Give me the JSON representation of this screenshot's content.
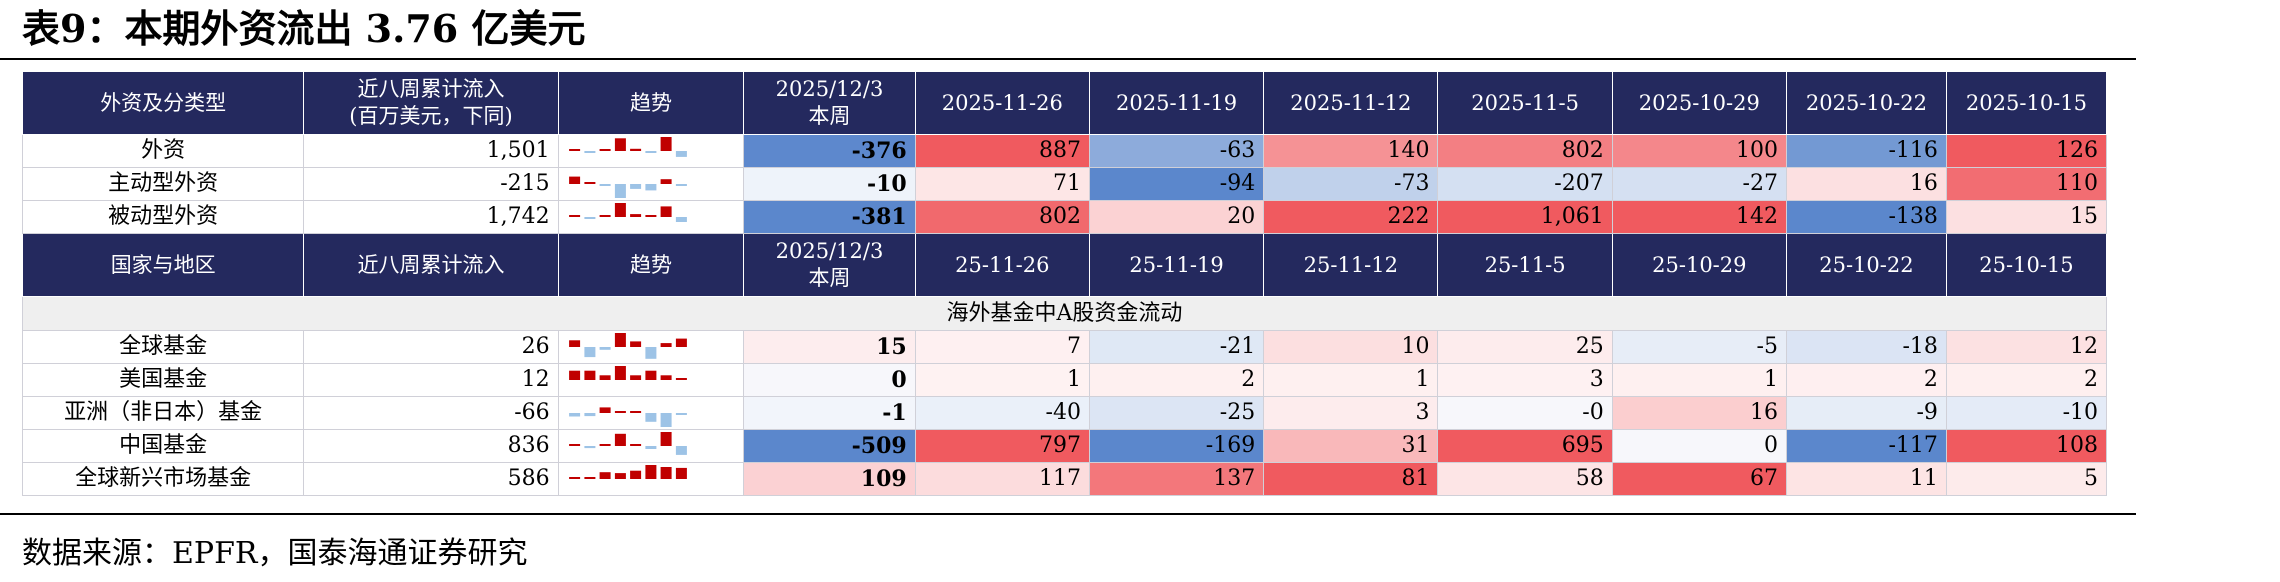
{
  "title": "表9：本期外资流出 3.76 亿美元",
  "source": "数据来源：EPFR，国泰海通证券研究",
  "colors": {
    "header_bg": "#24295e",
    "positive": "#f05a5f",
    "negative": "#5b87cc"
  },
  "section1": {
    "headers": [
      "外资及分类型",
      "近八周累计流入\n(百万美元，下同)",
      "趋势",
      "2025/12/3\n本周",
      "2025-11-26",
      "2025-11-19",
      "2025-11-12",
      "2025-11-5",
      "2025-10-29",
      "2025-10-22",
      "2025-10-15"
    ],
    "rows": [
      {
        "name": "外资",
        "total": "1,501",
        "values": [
          "-376",
          "887",
          "-63",
          "140",
          "802",
          "100",
          "-116",
          "126"
        ]
      },
      {
        "name": "主动型外资",
        "total": "-215",
        "values": [
          "-10",
          "71",
          "-94",
          "-73",
          "-207",
          "-27",
          "16",
          "110"
        ]
      },
      {
        "name": "被动型外资",
        "total": "1,742",
        "values": [
          "-381",
          "802",
          "20",
          "222",
          "1,061",
          "142",
          "-138",
          "15"
        ]
      }
    ]
  },
  "section2": {
    "headers": [
      "国家与地区",
      "近八周累计流入",
      "趋势",
      "2025/12/3\n本周",
      "25-11-26",
      "25-11-19",
      "25-11-12",
      "25-11-5",
      "25-10-29",
      "25-10-22",
      "25-10-15"
    ],
    "group_label": "海外基金中A股资金流动",
    "rows": [
      {
        "name": "全球基金",
        "total": "26",
        "values": [
          "15",
          "7",
          "-21",
          "10",
          "25",
          "-5",
          "-18",
          "12"
        ]
      },
      {
        "name": "美国基金",
        "total": "12",
        "values": [
          "0",
          "1",
          "2",
          "1",
          "3",
          "1",
          "2",
          "2"
        ]
      },
      {
        "name": "亚洲（非日本）基金",
        "total": "-66",
        "values": [
          "-1",
          "-40",
          "-25",
          "3",
          "-0",
          "16",
          "-9",
          "-10"
        ]
      },
      {
        "name": "中国基金",
        "total": "836",
        "values": [
          "-509",
          "797",
          "-169",
          "31",
          "695",
          "0",
          "-117",
          "108"
        ]
      },
      {
        "name": "全球新兴市场基金",
        "total": "586",
        "values": [
          "109",
          "117",
          "137",
          "81",
          "58",
          "67",
          "11",
          "5"
        ]
      }
    ]
  }
}
